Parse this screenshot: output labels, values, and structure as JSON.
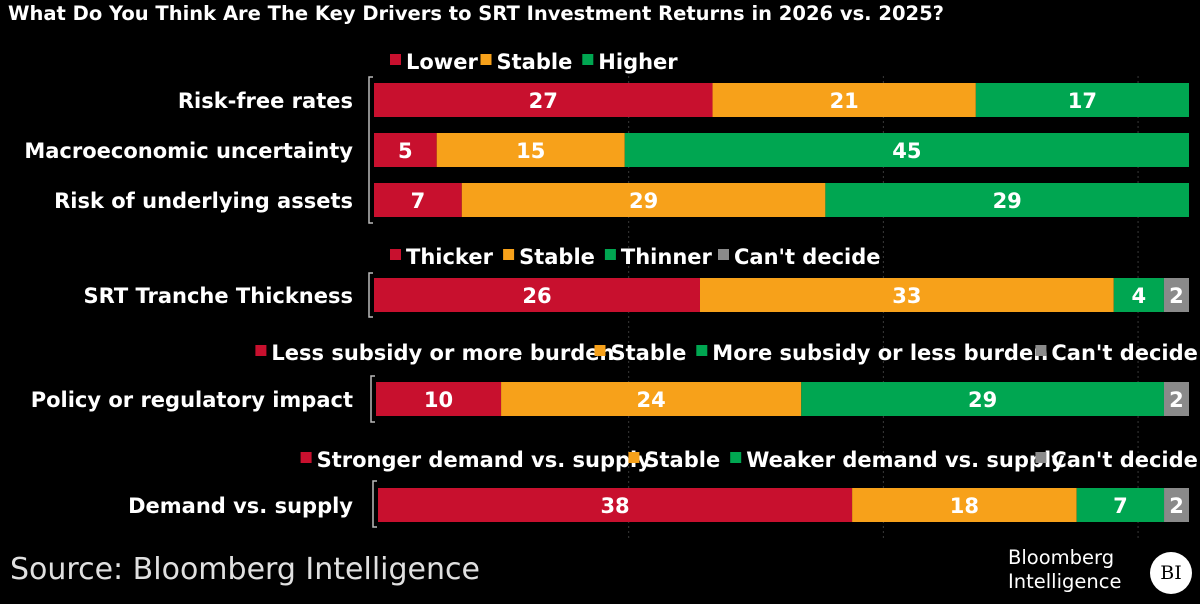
{
  "title": "What Do You Think Are The Key Drivers to SRT Investment Returns in 2026 vs. 2025?",
  "source": "Source: Bloomberg Intelligence",
  "logo": {
    "line1": "Bloomberg",
    "line2": "Intelligence",
    "badge": "BI"
  },
  "colors": {
    "red": "#c8102e",
    "orange": "#f7a11a",
    "green": "#00a651",
    "gray": "#8a8a8a"
  },
  "chart_data": [
    {
      "type": "bar",
      "orientation": "horizontal",
      "stacked": true,
      "legend": [
        {
          "label": "Lower",
          "color": "#c8102e"
        },
        {
          "label": "Stable",
          "color": "#f7a11a"
        },
        {
          "label": "Higher",
          "color": "#00a651"
        }
      ],
      "categories": [
        "Risk-free rates",
        "Macroeconomic uncertainty",
        "Risk of underlying assets"
      ],
      "series": [
        {
          "name": "Lower",
          "values": [
            27,
            5,
            7
          ]
        },
        {
          "name": "Stable",
          "values": [
            21,
            15,
            29
          ]
        },
        {
          "name": "Higher",
          "values": [
            17,
            45,
            29
          ]
        }
      ]
    },
    {
      "type": "bar",
      "orientation": "horizontal",
      "stacked": true,
      "legend": [
        {
          "label": "Thicker",
          "color": "#c8102e"
        },
        {
          "label": "Stable",
          "color": "#f7a11a"
        },
        {
          "label": "Thinner",
          "color": "#00a651"
        },
        {
          "label": "Can't decide",
          "color": "#8a8a8a"
        }
      ],
      "categories": [
        "SRT Tranche Thickness"
      ],
      "series": [
        {
          "name": "Thicker",
          "values": [
            26
          ]
        },
        {
          "name": "Stable",
          "values": [
            33
          ]
        },
        {
          "name": "Thinner",
          "values": [
            4
          ]
        },
        {
          "name": "Can't decide",
          "values": [
            2
          ]
        }
      ]
    },
    {
      "type": "bar",
      "orientation": "horizontal",
      "stacked": true,
      "legend": [
        {
          "label": "Less subsidy or more burden",
          "color": "#c8102e"
        },
        {
          "label": "Stable",
          "color": "#f7a11a"
        },
        {
          "label": "More subsidy or less burden",
          "color": "#00a651"
        },
        {
          "label": "Can't decide",
          "color": "#8a8a8a"
        }
      ],
      "categories": [
        "Policy or regulatory impact"
      ],
      "series": [
        {
          "name": "Less subsidy or more burden",
          "values": [
            10
          ]
        },
        {
          "name": "Stable",
          "values": [
            24
          ]
        },
        {
          "name": "More subsidy or less burden",
          "values": [
            29
          ]
        },
        {
          "name": "Can't decide",
          "values": [
            2
          ]
        }
      ]
    },
    {
      "type": "bar",
      "orientation": "horizontal",
      "stacked": true,
      "legend": [
        {
          "label": "Stronger demand vs. supply",
          "color": "#c8102e"
        },
        {
          "label": "Stable",
          "color": "#f7a11a"
        },
        {
          "label": "Weaker demand vs. supply",
          "color": "#00a651"
        },
        {
          "label": "Can't decide",
          "color": "#8a8a8a"
        }
      ],
      "categories": [
        "Demand vs. supply"
      ],
      "series": [
        {
          "name": "Stronger demand vs. supply",
          "values": [
            38
          ]
        },
        {
          "name": "Stable",
          "values": [
            18
          ]
        },
        {
          "name": "Weaker demand vs. supply",
          "values": [
            7
          ]
        },
        {
          "name": "Can't decide",
          "values": [
            2
          ]
        }
      ]
    }
  ]
}
